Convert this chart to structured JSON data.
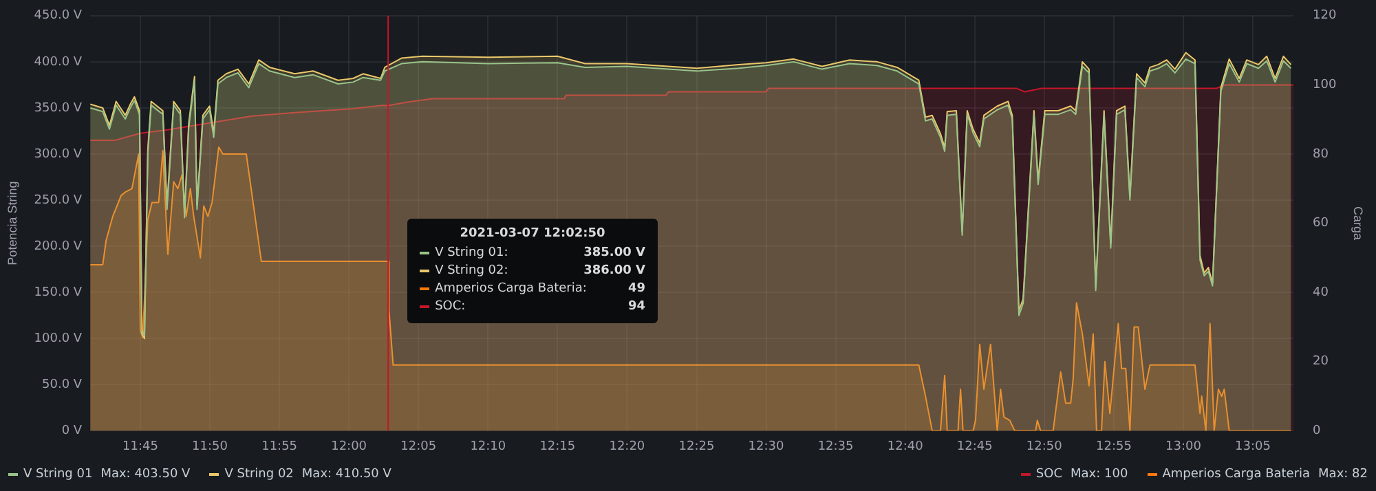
{
  "chart_data": {
    "type": "area",
    "ylabel": "Potencia String",
    "y2label": "Carga",
    "xlim": [
      11.69,
      13.132
    ],
    "xticks": [
      {
        "value": 11.75,
        "label": "11:45"
      },
      {
        "value": 11.8333,
        "label": "11:50"
      },
      {
        "value": 11.9167,
        "label": "11:55"
      },
      {
        "value": 12,
        "label": "12:00"
      },
      {
        "value": 12.0833,
        "label": "12:05"
      },
      {
        "value": 12.1667,
        "label": "12:10"
      },
      {
        "value": 12.25,
        "label": "12:15"
      },
      {
        "value": 12.3333,
        "label": "12:20"
      },
      {
        "value": 12.4167,
        "label": "12:25"
      },
      {
        "value": 12.5,
        "label": "12:30"
      },
      {
        "value": 12.5833,
        "label": "12:35"
      },
      {
        "value": 12.6667,
        "label": "12:40"
      },
      {
        "value": 12.75,
        "label": "12:45"
      },
      {
        "value": 12.8333,
        "label": "12:50"
      },
      {
        "value": 12.9167,
        "label": "12:55"
      },
      {
        "value": 13,
        "label": "13:00"
      },
      {
        "value": 13.0833,
        "label": "13:05"
      }
    ],
    "ylim": [
      0,
      450
    ],
    "yticks": [
      {
        "value": 0,
        "label": "0 V"
      },
      {
        "value": 50,
        "label": "50.0 V"
      },
      {
        "value": 100,
        "label": "100.0 V"
      },
      {
        "value": 150,
        "label": "150.0 V"
      },
      {
        "value": 200,
        "label": "200.0 V"
      },
      {
        "value": 250,
        "label": "250.0 V"
      },
      {
        "value": 300,
        "label": "300.0 V"
      },
      {
        "value": 350,
        "label": "350.0 V"
      },
      {
        "value": 400,
        "label": "400.0 V"
      },
      {
        "value": 450,
        "label": "450.0 V"
      }
    ],
    "y2lim": [
      0,
      120
    ],
    "y2ticks": [
      0,
      20,
      40,
      60,
      80,
      100,
      120
    ],
    "grid": true,
    "legend": "bottom",
    "marker": "none",
    "line_style": "solid",
    "ref_lines": [
      {
        "axis": "x",
        "value": 12.047,
        "color": "#c4162a"
      }
    ],
    "annotations": [
      "2021-03-07 12:02:50",
      "V String 01:",
      "385.00 V",
      "V String 02:",
      "386.00 V",
      "Amperios Carga Bateria:",
      "49",
      "SOC:",
      "94",
      "Max: 403.50 V",
      "Max: 410.50 V",
      "Max: 82",
      "Max: 100"
    ],
    "series": [
      {
        "name": "V String 01",
        "color": "#9ac48a",
        "axis": "y",
        "x": [
          11.69,
          11.705,
          11.713,
          11.721,
          11.732,
          11.738,
          11.743,
          11.749,
          11.752,
          11.755,
          11.759,
          11.763,
          11.77,
          11.777,
          11.782,
          11.79,
          11.798,
          11.803,
          11.808,
          11.815,
          11.818,
          11.825,
          11.833,
          11.838,
          11.843,
          11.853,
          11.867,
          11.88,
          11.892,
          11.905,
          11.935,
          11.957,
          11.987,
          12.005,
          12.017,
          12.038,
          12.043,
          12.063,
          12.088,
          12.167,
          12.25,
          12.283,
          12.333,
          12.417,
          12.467,
          12.5,
          12.533,
          12.567,
          12.6,
          12.633,
          12.657,
          12.683,
          12.691,
          12.699,
          12.709,
          12.714,
          12.717,
          12.728,
          12.735,
          12.741,
          12.748,
          12.756,
          12.761,
          12.777,
          12.79,
          12.795,
          12.803,
          12.808,
          12.821,
          12.826,
          12.834,
          12.85,
          12.865,
          12.871,
          12.879,
          12.887,
          12.895,
          12.905,
          12.913,
          12.92,
          12.93,
          12.936,
          12.944,
          12.954,
          12.96,
          12.97,
          12.98,
          12.99,
          13.003,
          13.014,
          13.02,
          13.025,
          13.03,
          13.035,
          13.045,
          13.055,
          13.067,
          13.076,
          13.09,
          13.1,
          13.11,
          13.12,
          13.129
        ],
        "values": [
          350,
          346,
          327,
          353,
          338,
          350,
          358,
          343,
          110,
          103,
          300,
          353,
          348,
          343,
          240,
          353,
          343,
          231,
          328,
          380,
          240,
          338,
          348,
          318,
          376,
          383,
          388,
          372,
          398,
          390,
          383,
          386,
          376,
          378,
          383,
          380,
          390,
          398,
          400,
          398,
          399,
          394,
          395,
          390,
          393,
          396,
          400,
          392,
          398,
          396,
          390,
          376,
          336,
          338,
          318,
          303,
          342,
          343,
          212,
          343,
          323,
          308,
          338,
          348,
          353,
          338,
          125,
          138,
          343,
          267,
          343,
          343,
          348,
          343,
          395,
          388,
          152,
          343,
          198,
          343,
          348,
          250,
          383,
          373,
          390,
          393,
          398,
          388,
          403,
          398,
          185,
          168,
          173,
          157,
          368,
          398,
          378,
          398,
          393,
          401,
          378,
          401,
          393
        ]
      },
      {
        "name": "V String 02",
        "color": "#eac86a",
        "axis": "y",
        "x": [
          11.69,
          11.705,
          11.713,
          11.721,
          11.732,
          11.738,
          11.743,
          11.749,
          11.752,
          11.755,
          11.759,
          11.763,
          11.77,
          11.777,
          11.782,
          11.79,
          11.798,
          11.803,
          11.808,
          11.815,
          11.818,
          11.825,
          11.833,
          11.838,
          11.843,
          11.853,
          11.867,
          11.88,
          11.892,
          11.905,
          11.935,
          11.957,
          11.987,
          12.005,
          12.017,
          12.038,
          12.043,
          12.063,
          12.088,
          12.167,
          12.25,
          12.283,
          12.333,
          12.417,
          12.467,
          12.5,
          12.533,
          12.567,
          12.6,
          12.633,
          12.657,
          12.683,
          12.691,
          12.699,
          12.709,
          12.714,
          12.717,
          12.728,
          12.735,
          12.741,
          12.748,
          12.756,
          12.761,
          12.777,
          12.79,
          12.795,
          12.803,
          12.808,
          12.821,
          12.826,
          12.834,
          12.85,
          12.865,
          12.871,
          12.879,
          12.887,
          12.895,
          12.905,
          12.913,
          12.92,
          12.93,
          12.936,
          12.944,
          12.954,
          12.96,
          12.97,
          12.98,
          12.99,
          13.003,
          13.014,
          13.02,
          13.025,
          13.03,
          13.035,
          13.045,
          13.055,
          13.067,
          13.076,
          13.09,
          13.1,
          13.11,
          13.12,
          13.129
        ],
        "values": [
          354,
          350,
          331,
          357,
          342,
          354,
          362,
          347,
          105,
          100,
          305,
          357,
          352,
          347,
          245,
          357,
          347,
          236,
          333,
          384,
          245,
          342,
          352,
          323,
          380,
          387,
          392,
          376,
          402,
          394,
          387,
          390,
          380,
          382,
          387,
          382,
          394,
          404,
          406,
          405,
          406,
          398,
          398,
          393,
          397,
          399,
          403,
          395,
          402,
          400,
          394,
          380,
          340,
          342,
          322,
          307,
          346,
          347,
          216,
          347,
          327,
          312,
          342,
          352,
          357,
          342,
          130,
          143,
          347,
          272,
          347,
          347,
          352,
          347,
          400,
          392,
          156,
          347,
          203,
          347,
          352,
          255,
          387,
          377,
          394,
          397,
          402,
          392,
          410,
          402,
          190,
          171,
          177,
          160,
          372,
          403,
          382,
          402,
          397,
          406,
          382,
          406,
          397
        ]
      },
      {
        "name": "Amperios Carga Bateria",
        "color": "#ff780a",
        "axis": "y2",
        "x": [
          11.69,
          11.705,
          11.709,
          11.717,
          11.727,
          11.732,
          11.74,
          11.748,
          11.75,
          11.753,
          11.759,
          11.764,
          11.772,
          11.777,
          11.783,
          11.79,
          11.795,
          11.8,
          11.805,
          11.81,
          11.814,
          11.822,
          11.826,
          11.831,
          11.836,
          11.844,
          11.849,
          11.877,
          11.884,
          11.895,
          12.038,
          12.047,
          12.048,
          12.053,
          12.683,
          12.691,
          12.699,
          12.709,
          12.714,
          12.717,
          12.73,
          12.733,
          12.736,
          12.748,
          12.751,
          12.756,
          12.761,
          12.769,
          12.777,
          12.781,
          12.785,
          12.792,
          12.798,
          12.823,
          12.825,
          12.829,
          12.844,
          12.853,
          12.859,
          12.865,
          12.868,
          12.872,
          12.879,
          12.887,
          12.892,
          12.896,
          12.902,
          12.906,
          12.912,
          12.922,
          12.926,
          12.931,
          12.936,
          12.941,
          12.946,
          12.954,
          12.96,
          13.014,
          13.02,
          13.022,
          13.027,
          13.032,
          13.037,
          13.042,
          13.046,
          13.049,
          13.055,
          13.129
        ],
        "values": [
          48,
          48,
          55,
          62,
          68,
          69,
          70,
          80,
          29,
          27,
          61,
          66,
          66,
          81,
          51,
          72,
          70,
          74,
          62,
          70,
          62,
          50,
          65,
          62,
          66,
          82,
          80,
          80,
          68,
          49,
          49,
          49,
          35,
          19,
          19,
          10,
          0,
          0,
          16,
          0,
          0,
          12,
          0,
          0,
          3,
          25,
          12,
          25,
          0,
          12,
          4,
          3,
          0,
          0,
          3,
          0,
          0,
          17,
          8,
          8,
          15,
          37,
          28,
          13,
          28,
          0,
          0,
          20,
          5,
          31,
          18,
          18,
          0,
          30,
          30,
          12,
          19,
          19,
          5,
          10,
          0,
          31,
          0,
          12,
          10,
          12,
          0,
          0
        ]
      },
      {
        "name": "SOC",
        "color": "#c4162a",
        "axis": "y2",
        "x": [
          11.69,
          11.72,
          11.75,
          11.783,
          11.833,
          11.884,
          11.935,
          12,
          12.038,
          12.047,
          12.07,
          12.1,
          12.258,
          12.26,
          12.38,
          12.383,
          12.5,
          12.503,
          12.8,
          12.81,
          12.83,
          13.04,
          13.05,
          13.132
        ],
        "values": [
          84,
          84,
          86,
          87,
          89,
          91,
          92,
          93,
          94,
          94,
          95,
          96,
          96,
          97,
          97,
          98,
          98,
          99,
          99,
          98,
          99,
          99,
          100,
          100
        ]
      }
    ]
  }
}
